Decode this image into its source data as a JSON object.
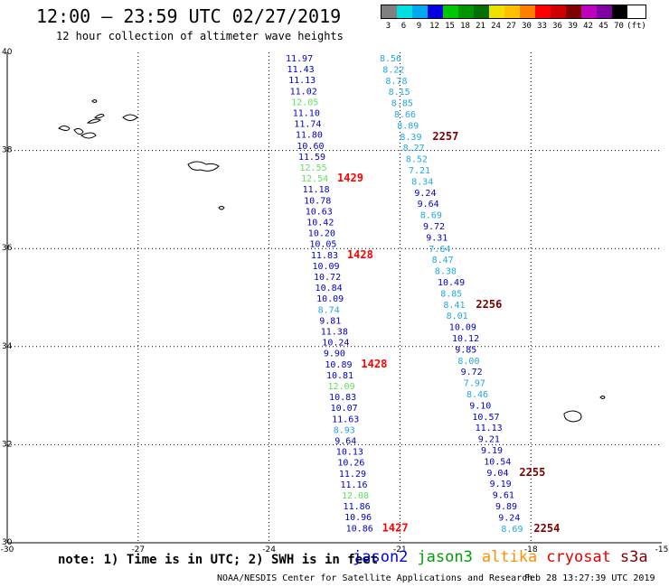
{
  "header": {
    "title": "12:00 – 23:59 UTC 02/27/2019",
    "subtitle": "12 hour collection of altimeter wave heights"
  },
  "legend": {
    "swatches": [
      {
        "color": "#808080",
        "label": "3"
      },
      {
        "color": "#00e0e0",
        "label": "6"
      },
      {
        "color": "#00a8f0",
        "label": "9"
      },
      {
        "color": "#0000e0",
        "label": "12"
      },
      {
        "color": "#00c800",
        "label": "15"
      },
      {
        "color": "#009600",
        "label": "18"
      },
      {
        "color": "#007000",
        "label": "21"
      },
      {
        "color": "#f0e000",
        "label": "24"
      },
      {
        "color": "#ffc000",
        "label": "27"
      },
      {
        "color": "#ff8000",
        "label": "30"
      },
      {
        "color": "#ff0000",
        "label": "33"
      },
      {
        "color": "#d00000",
        "label": "36"
      },
      {
        "color": "#800000",
        "label": "39"
      },
      {
        "color": "#c000c0",
        "label": "42"
      },
      {
        "color": "#8000a0",
        "label": "45"
      },
      {
        "color": "#000000",
        "label": "70"
      }
    ],
    "unit": "(ft)"
  },
  "map": {
    "lat_ticks": [
      "40",
      "38",
      "36",
      "34",
      "32",
      "30"
    ],
    "lon_ticks": [
      "-30",
      "-27",
      "-24",
      "-21",
      "-18",
      "-15"
    ],
    "lat_values": [
      40,
      38,
      36,
      34,
      32,
      30
    ],
    "lon_values": [
      -30,
      -27,
      -24,
      -21,
      -18,
      -15
    ],
    "lat_range": [
      30,
      40
    ],
    "lon_range": [
      -30,
      -15
    ],
    "grid": "dotted",
    "colors": {
      "jason2": "#0000c8",
      "jason3": "#00c800",
      "altika": "#60e060",
      "cryosat": "#20a8e0",
      "s3a": "#800000",
      "time_red": "#ff0000"
    }
  },
  "track_west": {
    "values": [
      "11.97",
      "11.43",
      "11.13",
      "11.02",
      "12.05",
      "11.10",
      "11.74",
      "11.80",
      "10.60",
      "11.59",
      "12.55",
      "12.54",
      "11.18",
      "10.78",
      "10.63",
      "10.42",
      "10.20",
      "10.05",
      "11.83",
      "10.09",
      "10.72",
      "10.84",
      "10.09",
      "8.74",
      "9.81",
      "11.38",
      "10.24",
      "9.90",
      "10.89",
      "10.81",
      "12.09",
      "10.83",
      "10.07",
      "11.63",
      "8.93",
      "9.64",
      "10.13",
      "10.26",
      "11.29",
      "11.16",
      "12.08",
      "11.86",
      "10.96",
      "10.86"
    ],
    "colors": [
      "#0000c8",
      "#0000c8",
      "#0000c8",
      "#0000c8",
      "#60e060",
      "#0000c8",
      "#0000c8",
      "#0000c8",
      "#0000c8",
      "#0000c8",
      "#60e060",
      "#60e060",
      "#0000c8",
      "#0000c8",
      "#0000c8",
      "#0000c8",
      "#0000c8",
      "#0000c8",
      "#0000c8",
      "#0000c8",
      "#0000c8",
      "#0000c8",
      "#0000c8",
      "#20a8e0",
      "#0000c8",
      "#0000c8",
      "#0000c8",
      "#0000c8",
      "#0000c8",
      "#0000c8",
      "#60e060",
      "#0000c8",
      "#0000c8",
      "#0000c8",
      "#20a8e0",
      "#0000c8",
      "#0000c8",
      "#0000c8",
      "#0000c8",
      "#0000c8",
      "#60e060",
      "#0000c8",
      "#0000c8",
      "#0000c8"
    ],
    "times": [
      {
        "label": "1429",
        "index": 11
      },
      {
        "label": "1428",
        "index": 18
      },
      {
        "label": "1428",
        "index": 28
      },
      {
        "label": "1427",
        "index": 43
      }
    ]
  },
  "track_east": {
    "values": [
      "8.56",
      "8.22",
      "8.78",
      "8.15",
      "8.85",
      "8.66",
      "8.89",
      "8.39",
      "8.27",
      "8.52",
      "7.21",
      "8.34",
      "9.24",
      "9.64",
      "8.69",
      "9.72",
      "9.31",
      "7.64",
      "8.47",
      "8.38",
      "10.49",
      "8.85",
      "8.41",
      "8.01",
      "10.09",
      "10.12",
      "9.85",
      "8.00",
      "9.72",
      "7.97",
      "8.46",
      "9.10",
      "10.57",
      "11.13",
      "9.21",
      "9.19",
      "10.54",
      "9.04",
      "9.19",
      "9.61",
      "9.89",
      "9.24",
      "8.69"
    ],
    "colors": [
      "#20a8e0",
      "#20a8e0",
      "#20a8e0",
      "#20a8e0",
      "#20a8e0",
      "#20a8e0",
      "#20a8e0",
      "#20a8e0",
      "#20a8e0",
      "#20a8e0",
      "#20a8e0",
      "#20a8e0",
      "#0000c8",
      "#0000c8",
      "#20a8e0",
      "#0000c8",
      "#0000c8",
      "#20a8e0",
      "#20a8e0",
      "#20a8e0",
      "#0000c8",
      "#20a8e0",
      "#20a8e0",
      "#20a8e0",
      "#0000c8",
      "#0000c8",
      "#0000c8",
      "#20a8e0",
      "#0000c8",
      "#20a8e0",
      "#20a8e0",
      "#0000c8",
      "#0000c8",
      "#0000c8",
      "#0000c8",
      "#0000c8",
      "#0000c8",
      "#0000c8",
      "#0000c8",
      "#0000c8",
      "#0000c8",
      "#0000c8",
      "#20a8e0"
    ],
    "times": [
      {
        "label": "2257",
        "index": 7
      },
      {
        "label": "2256",
        "index": 22
      },
      {
        "label": "2255",
        "index": 37
      },
      {
        "label": "2254",
        "index": 42
      }
    ]
  },
  "note": "note: 1) Time is in UTC; 2) SWH is in feet",
  "satellites": [
    {
      "name": "jason2",
      "color": "#0000e0"
    },
    {
      "name": "jason3",
      "color": "#00a000"
    },
    {
      "name": "altika",
      "color": "#ff9000"
    },
    {
      "name": "cryosat",
      "color": "#e00000"
    },
    {
      "name": "s3a",
      "color": "#800000"
    }
  ],
  "footer": {
    "left": "NOAA/NESDIS Center for Satellite Applications and Research",
    "right": "Feb 28 13:27:39 UTC 2019"
  }
}
